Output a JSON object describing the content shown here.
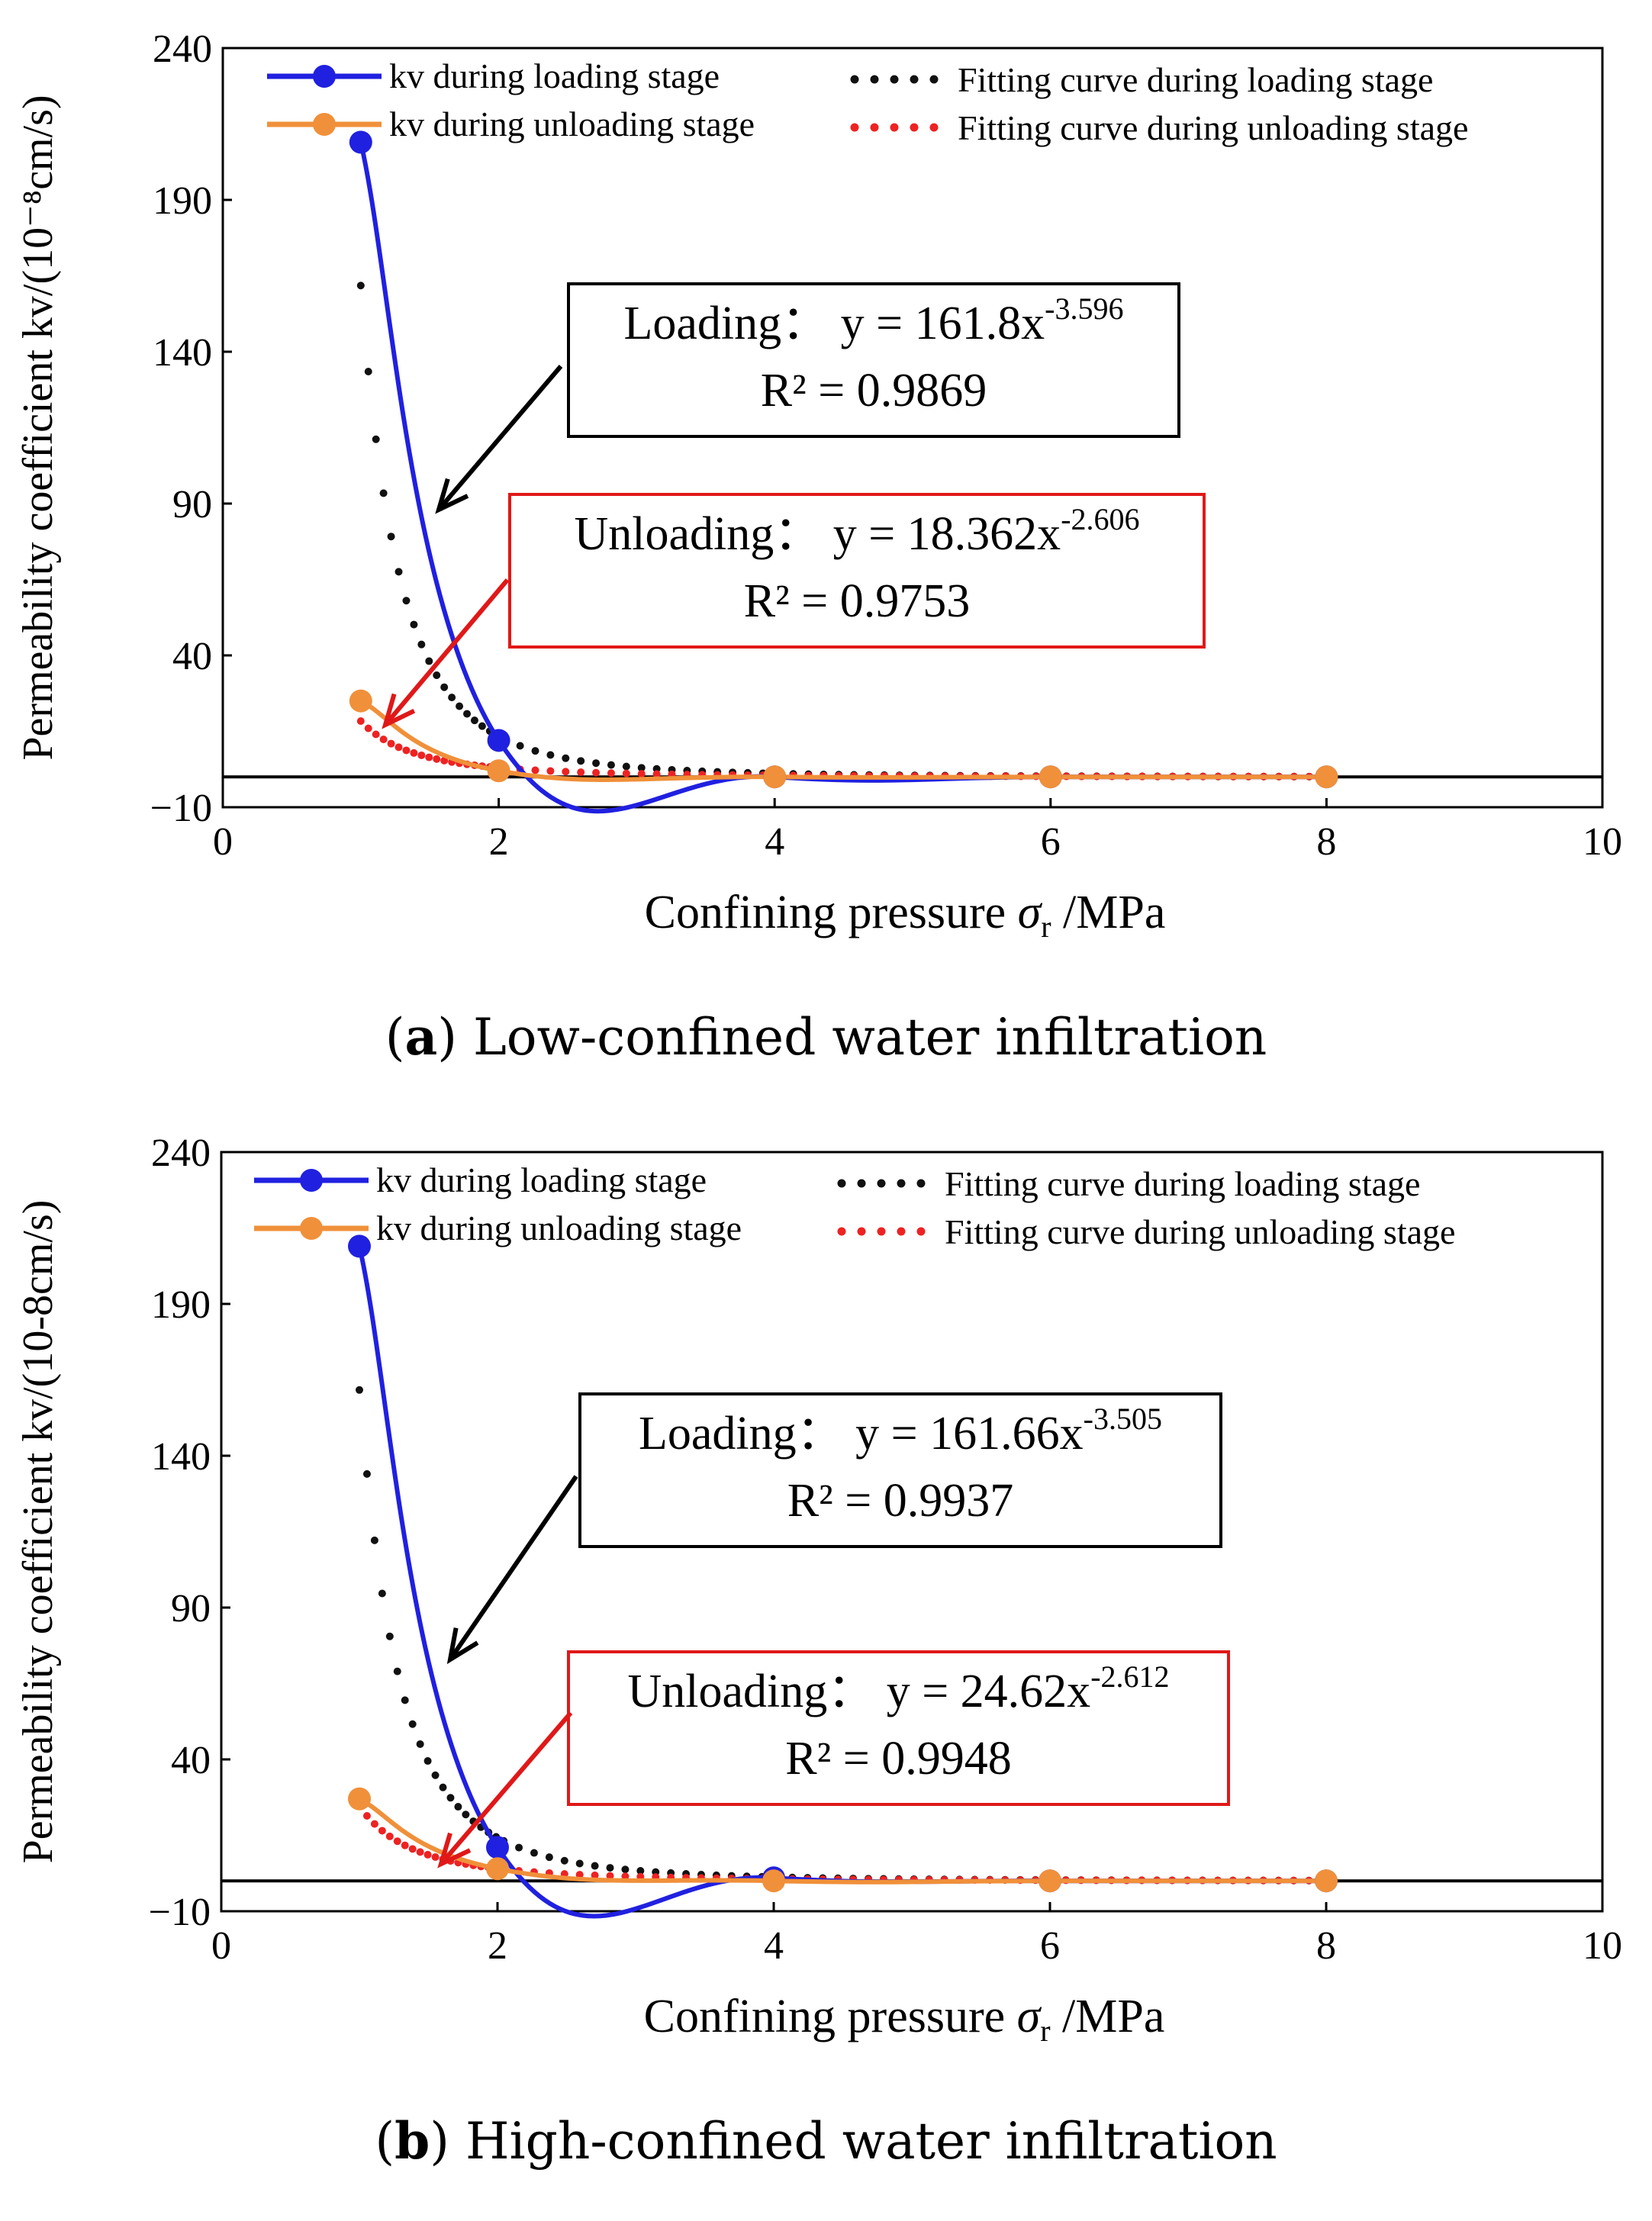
{
  "chart_data": [
    {
      "type": "line",
      "panel": "a",
      "caption_letter": "a",
      "caption_text": "Low-confined water infiltration",
      "xlabel_main": "Confining pressure",
      "xlabel_symbol": "σ",
      "xlabel_sub": "r",
      "xlabel_unit": "/MPa",
      "ylabel": "Permeability coefficient  kv/(10⁻⁸cm/s)",
      "xlim": [
        0,
        10
      ],
      "ylim": [
        -10,
        240
      ],
      "xticks": [
        0,
        2,
        4,
        6,
        8,
        10
      ],
      "yticks": [
        -10,
        40,
        90,
        140,
        190,
        240
      ],
      "ytick_labels": [
        "−10",
        "40",
        "90",
        "140",
        "190",
        "240"
      ],
      "colors": {
        "loading": "#2020e0",
        "unloading": "#f0903a",
        "fit_loading": "#111111",
        "fit_unloading": "#ee2222"
      },
      "series": [
        {
          "name": "kv during loading stage",
          "x": [
            1,
            2,
            4,
            6,
            8
          ],
          "y": [
            209,
            12,
            0,
            0,
            0
          ]
        },
        {
          "name": "kv during unloading stage",
          "x": [
            1,
            2,
            4,
            6,
            8
          ],
          "y": [
            25,
            2,
            0,
            0,
            0
          ]
        }
      ],
      "fits": [
        {
          "name": "Fitting curve during loading stage",
          "a": 161.8,
          "b": -3.596,
          "r2": 0.9869
        },
        {
          "name": "Fitting curve during unloading stage",
          "a": 18.362,
          "b": -2.606,
          "r2": 0.9753
        }
      ],
      "legend": {
        "loading": "kv during loading stage",
        "unloading": "kv during unloading stage",
        "fit_loading": "Fitting curve during loading stage",
        "fit_unloading": "Fitting curve during unloading stage"
      },
      "annotations": {
        "loading_eq": "Loading：  y = 161.8x",
        "loading_exp": "-3.596",
        "loading_r2": "R² = 0.9869",
        "unloading_eq": "Unloading：  y = 18.362x",
        "unloading_exp": "-2.606",
        "unloading_r2": "R² = 0.9753"
      }
    },
    {
      "type": "line",
      "panel": "b",
      "caption_letter": "b",
      "caption_text": "High-confined water infiltration",
      "xlabel_main": "Confining pressure",
      "xlabel_symbol": "σ",
      "xlabel_sub": "r",
      "xlabel_unit": "/MPa",
      "ylabel": "Permeability coefficient  kv/(10-8cm/s)",
      "xlim": [
        0,
        10
      ],
      "ylim": [
        -10,
        240
      ],
      "xticks": [
        0,
        2,
        4,
        6,
        8,
        10
      ],
      "yticks": [
        -10,
        40,
        90,
        140,
        190,
        240
      ],
      "ytick_labels": [
        "−10",
        "40",
        "90",
        "140",
        "190",
        "240"
      ],
      "colors": {
        "loading": "#2020e0",
        "unloading": "#f0903a",
        "fit_loading": "#111111",
        "fit_unloading": "#ee2222"
      },
      "series": [
        {
          "name": "kv during loading stage",
          "x": [
            1,
            2,
            4,
            6,
            8
          ],
          "y": [
            209,
            11,
            1,
            0,
            0
          ]
        },
        {
          "name": "kv during unloading stage",
          "x": [
            1,
            2,
            4,
            6,
            8
          ],
          "y": [
            27,
            4,
            0,
            0,
            0
          ]
        }
      ],
      "fits": [
        {
          "name": "Fitting curve during loading stage",
          "a": 161.66,
          "b": -3.505,
          "r2": 0.9937
        },
        {
          "name": "Fitting curve during unloading stage",
          "a": 24.62,
          "b": -2.612,
          "r2": 0.9948
        }
      ],
      "legend": {
        "loading": "kv during loading stage",
        "unloading": "kv during unloading stage",
        "fit_loading": "Fitting curve during loading stage",
        "fit_unloading": "Fitting curve during unloading stage"
      },
      "annotations": {
        "loading_eq": "Loading：  y = 161.66x",
        "loading_exp": "-3.505",
        "loading_r2": "R² = 0.9937",
        "unloading_eq": "Unloading：  y = 24.62x",
        "unloading_exp": "-2.612",
        "unloading_r2": "R² = 0.9948"
      }
    }
  ]
}
